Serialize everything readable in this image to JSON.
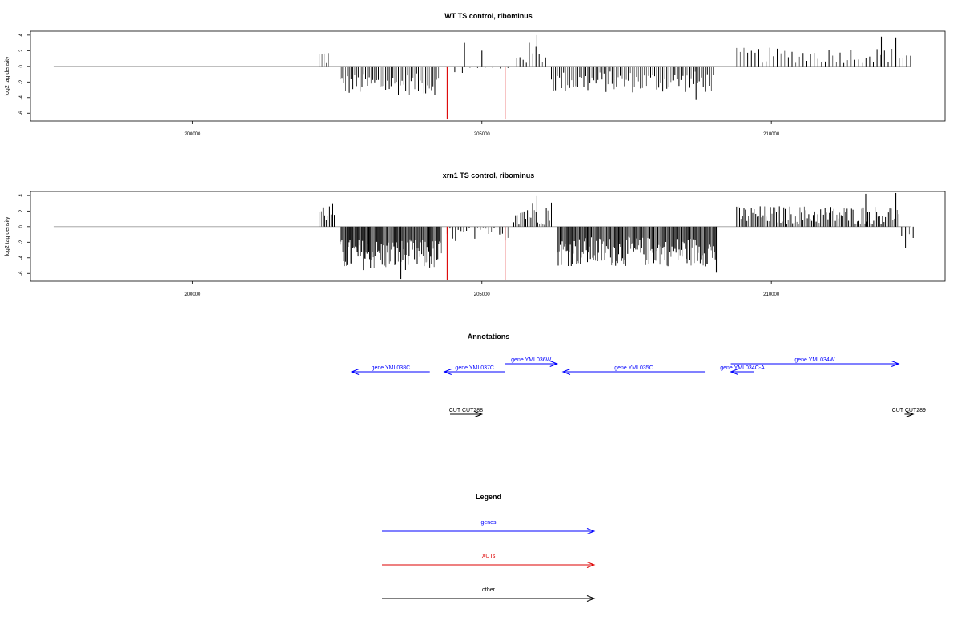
{
  "colors": {
    "gene": "#0000ff",
    "xut": "#dd0000",
    "other": "#000000",
    "baseline": "#999999",
    "bar_dark": "#000000",
    "bar_light": "#666666"
  },
  "chart_data": [
    {
      "type": "bar",
      "title": "WT TS control, ribominus",
      "xlabel": "",
      "ylabel": "log2 tag density",
      "xlim": [
        197200,
        213000
      ],
      "ylim": [
        -7,
        4.5
      ],
      "xticks": [
        200000,
        205000,
        210000
      ],
      "xtick_labels": [
        "200000",
        "205000",
        "210000"
      ],
      "yticks": [
        4,
        2,
        0,
        -2,
        -4,
        -6
      ],
      "ytick_labels": [
        "4",
        "2",
        "0",
        "-2",
        "-4",
        "-6"
      ],
      "baseline_range": [
        197600,
        212400
      ],
      "grid": false,
      "segments": [
        {
          "x0": 202200,
          "x1": 202350,
          "mean": 1.2,
          "amp": 1.2,
          "density": 50
        },
        {
          "x0": 202550,
          "x1": 204250,
          "mean": -2.3,
          "amp": 1.4,
          "density": 45
        },
        {
          "x0": 204400,
          "x1": 205450,
          "mean": -0.4,
          "amp": 0.9,
          "density": 12
        },
        {
          "x0": 205600,
          "x1": 206100,
          "mean": 1.6,
          "amp": 1.5,
          "density": 28
        },
        {
          "x0": 206200,
          "x1": 209000,
          "mean": -2.0,
          "amp": 1.4,
          "density": 40
        },
        {
          "x0": 209400,
          "x1": 212400,
          "mean": 1.4,
          "amp": 1.0,
          "density": 22
        }
      ],
      "spikes": [
        {
          "x": 204400,
          "y": -6.8,
          "series": "XUTs"
        },
        {
          "x": 205400,
          "y": -6.8,
          "series": "XUTs"
        },
        {
          "x": 204700,
          "y": 3.0,
          "series": "other"
        },
        {
          "x": 205000,
          "y": 2.0,
          "series": "other"
        },
        {
          "x": 205950,
          "y": 4.0,
          "series": "other"
        },
        {
          "x": 208700,
          "y": -4.3,
          "series": "other"
        },
        {
          "x": 211900,
          "y": 3.8,
          "series": "other"
        },
        {
          "x": 212150,
          "y": 3.7,
          "series": "other"
        }
      ]
    },
    {
      "type": "bar",
      "title": "xrn1 TS control, ribominus",
      "xlabel": "",
      "ylabel": "log2 tag density",
      "xlim": [
        197200,
        213000
      ],
      "ylim": [
        -7,
        4.5
      ],
      "xticks": [
        200000,
        205000,
        210000
      ],
      "xtick_labels": [
        "200000",
        "205000",
        "210000"
      ],
      "yticks": [
        4,
        2,
        0,
        -2,
        -4,
        -6
      ],
      "ytick_labels": [
        "4",
        "2",
        "0",
        "-2",
        "-4",
        "-6"
      ],
      "baseline_range": [
        197600,
        212400
      ],
      "grid": false,
      "segments": [
        {
          "x0": 202200,
          "x1": 202450,
          "mean": 1.8,
          "amp": 1.3,
          "density": 55
        },
        {
          "x0": 202550,
          "x1": 204300,
          "mean": -3.6,
          "amp": 2.0,
          "density": 90
        },
        {
          "x0": 204400,
          "x1": 205450,
          "mean": -1.0,
          "amp": 1.0,
          "density": 30
        },
        {
          "x0": 205550,
          "x1": 206200,
          "mean": 1.8,
          "amp": 1.6,
          "density": 50
        },
        {
          "x0": 206300,
          "x1": 209050,
          "mean": -3.2,
          "amp": 1.9,
          "density": 80
        },
        {
          "x0": 209400,
          "x1": 212200,
          "mean": 1.5,
          "amp": 1.2,
          "density": 55
        },
        {
          "x0": 212250,
          "x1": 212450,
          "mean": -2.0,
          "amp": 1.2,
          "density": 30
        }
      ],
      "spikes": [
        {
          "x": 204400,
          "y": -6.8,
          "series": "XUTs"
        },
        {
          "x": 205400,
          "y": -6.8,
          "series": "XUTs"
        },
        {
          "x": 203600,
          "y": -6.7,
          "series": "other"
        },
        {
          "x": 205950,
          "y": 4.0,
          "series": "other"
        },
        {
          "x": 209050,
          "y": -5.9,
          "series": "other"
        },
        {
          "x": 211630,
          "y": 4.2,
          "series": "other"
        },
        {
          "x": 212150,
          "y": 4.3,
          "series": "other"
        }
      ]
    }
  ],
  "annotations": {
    "title": "Annotations",
    "features": [
      {
        "label": "gene YML038C",
        "start": 202750,
        "end": 204100,
        "strand": "-",
        "kind": "gene",
        "row": 1
      },
      {
        "label": "gene YML037C",
        "start": 204350,
        "end": 205400,
        "strand": "-",
        "kind": "gene",
        "row": 1
      },
      {
        "label": "gene YML036W",
        "start": 205400,
        "end": 206300,
        "strand": "+",
        "kind": "gene",
        "row": 0
      },
      {
        "label": "gene YML035C",
        "start": 206400,
        "end": 208850,
        "strand": "-",
        "kind": "gene",
        "row": 1
      },
      {
        "label": "gene YML034C-A",
        "start": 209300,
        "end": 209700,
        "strand": "-",
        "kind": "gene",
        "row": 1
      },
      {
        "label": "gene YML034W",
        "start": 209300,
        "end": 212200,
        "strand": "+",
        "kind": "gene",
        "row": 0
      },
      {
        "label": "CUT CUT288",
        "start": 204450,
        "end": 205000,
        "strand": "+",
        "kind": "other",
        "row": 2
      },
      {
        "label": "CUT CUT289",
        "start": 212300,
        "end": 212450,
        "strand": "+",
        "kind": "other",
        "row": 2
      }
    ]
  },
  "legend": {
    "title": "Legend",
    "items": [
      {
        "label": "genes",
        "kind": "gene"
      },
      {
        "label": "XUTs",
        "kind": "xut"
      },
      {
        "label": "other",
        "kind": "other"
      }
    ]
  }
}
